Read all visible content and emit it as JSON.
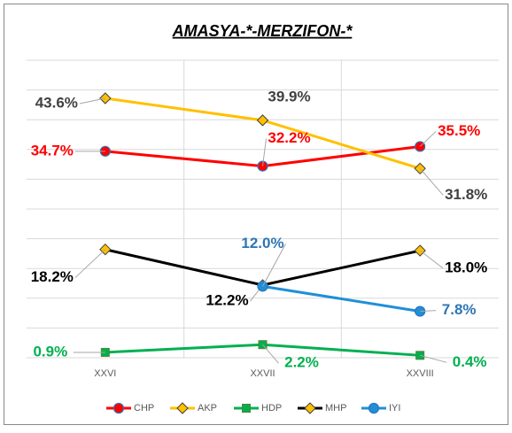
{
  "chart_data": {
    "type": "line",
    "title": "AMASYA-*-MERZIFON-*",
    "categories": [
      "XXVI",
      "XXVII",
      "XXVIII"
    ],
    "ylim": [
      0,
      50
    ],
    "yticks": [
      0,
      5,
      10,
      15,
      20,
      25,
      30,
      35,
      40,
      45,
      50
    ],
    "grid": true,
    "legend": "bottom",
    "series": [
      {
        "name": "CHP",
        "color": "#ff0000",
        "values": [
          34.7,
          32.2,
          35.5
        ],
        "value_labels": [
          "34.7%",
          "32.2%",
          "35.5%"
        ]
      },
      {
        "name": "AKP",
        "color": "#ffc000",
        "values": [
          43.6,
          39.9,
          31.8
        ],
        "value_labels": [
          "43.6%",
          "39.9%",
          "31.8%"
        ]
      },
      {
        "name": "HDP",
        "color": "#00b050",
        "values": [
          0.9,
          2.2,
          0.4
        ],
        "value_labels": [
          "0.9%",
          "2.2%",
          "0.4%"
        ]
      },
      {
        "name": "MHP",
        "color": "#000000",
        "values": [
          18.2,
          12.2,
          18.0
        ],
        "value_labels": [
          "18.2%",
          "12.2%",
          "18.0%"
        ]
      },
      {
        "name": "IYI",
        "color": "#1f8fd8",
        "values": [
          null,
          12.0,
          7.8
        ],
        "value_labels": [
          null,
          "12.0%",
          "7.8%"
        ]
      }
    ]
  }
}
